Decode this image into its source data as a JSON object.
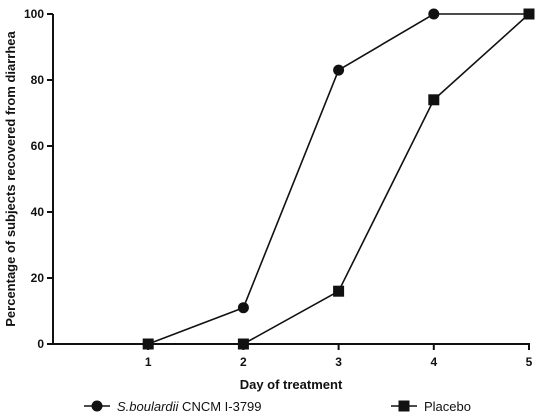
{
  "chart_data": {
    "type": "line",
    "title": "",
    "xlabel": "Day of treatment",
    "ylabel": "Percentage of subjects recovered from diarrhea",
    "xlim": [
      0,
      5
    ],
    "ylim": [
      0,
      100
    ],
    "x_ticks": [
      "1",
      "2",
      "3",
      "4",
      "5"
    ],
    "y_ticks": [
      "0",
      "20",
      "40",
      "60",
      "80",
      "100"
    ],
    "grid": false,
    "legend_position": "bottom",
    "x": [
      1,
      2,
      3,
      4,
      5
    ],
    "series": [
      {
        "name": "S.boulardii CNCM I-3799",
        "name_italic_part": "S.boulardii",
        "name_rest": " CNCM I-3799",
        "marker": "circle",
        "values": [
          0,
          11,
          83,
          100,
          100
        ]
      },
      {
        "name": "Placebo",
        "marker": "square",
        "values": [
          0,
          0,
          16,
          74,
          100
        ]
      }
    ]
  }
}
